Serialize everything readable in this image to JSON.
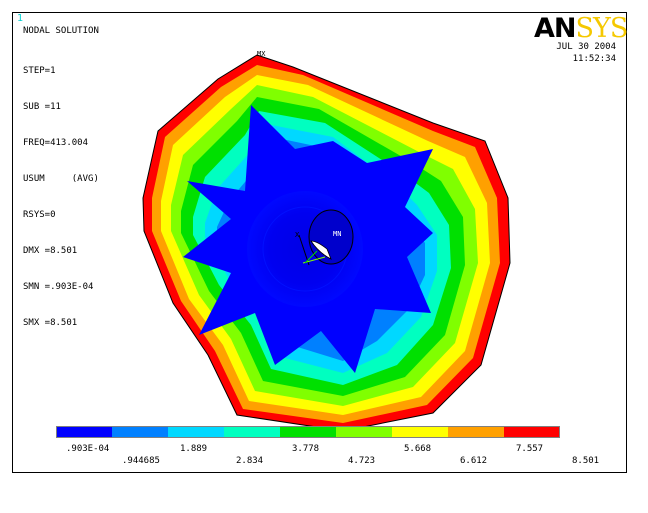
{
  "window_number": "1",
  "solution_title": "NODAL SOLUTION",
  "info_lines": [
    "STEP=1",
    "SUB =11",
    "FREQ=413.004",
    "USUM     (AVG)",
    "RSYS=0",
    "DMX =8.501",
    "SMN =.903E-04",
    "SMX =8.501"
  ],
  "date": "JUL 30 2004",
  "time": "11:52:34",
  "logo": {
    "main": "AN",
    "accent": "SYS"
  },
  "markers": {
    "max": "MX",
    "min": "MN",
    "axis": "X"
  },
  "legend": {
    "colors": [
      "#0000ff",
      "#0080ff",
      "#00d8ff",
      "#00ffc0",
      "#00e000",
      "#80ff00",
      "#ffff00",
      "#ffa000",
      "#ff0000"
    ],
    "labels_top": [
      ".903E-04",
      "1.889",
      "3.778",
      "5.668",
      "7.557"
    ],
    "labels_bottom": [
      ".944685",
      "2.834",
      "4.723",
      "6.612",
      "8.501"
    ]
  },
  "colors": {
    "background": "#ffffff",
    "logo_accent": "#f5c800",
    "window_number": "#00d0d0"
  }
}
